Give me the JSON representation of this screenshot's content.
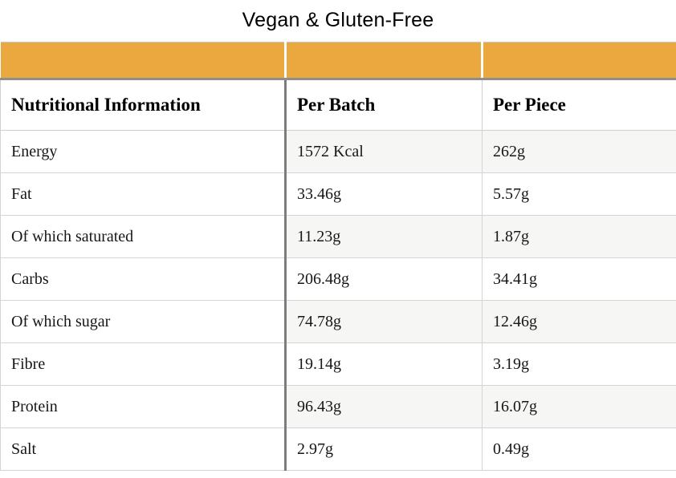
{
  "title": "Vegan & Gluten-Free",
  "table": {
    "columns": [
      "Nutritional Information",
      "Per Batch",
      "Per Piece"
    ],
    "rows": [
      {
        "label": "Energy",
        "per_batch": "1572 Kcal",
        "per_piece": "262g"
      },
      {
        "label": "Fat",
        "per_batch": "33.46g",
        "per_piece": "5.57g"
      },
      {
        "label": "Of which saturated",
        "per_batch": "11.23g",
        "per_piece": "1.87g"
      },
      {
        "label": "Carbs",
        "per_batch": "206.48g",
        "per_piece": "34.41g"
      },
      {
        "label": "Of which sugar",
        "per_batch": "74.78g",
        "per_piece": "12.46g"
      },
      {
        "label": "Fibre",
        "per_batch": "19.14g",
        "per_piece": "3.19g"
      },
      {
        "label": "Protein",
        "per_batch": "96.43g",
        "per_piece": "16.07g"
      },
      {
        "label": "Salt",
        "per_batch": "2.97g",
        "per_piece": "0.49g"
      }
    ]
  },
  "colors": {
    "band_orange": "#EBA83E",
    "band_bottom_border": "#8f8f8f",
    "dark_column_divider": "#7d7d7d",
    "row_stripe": "#f6f6f4"
  }
}
